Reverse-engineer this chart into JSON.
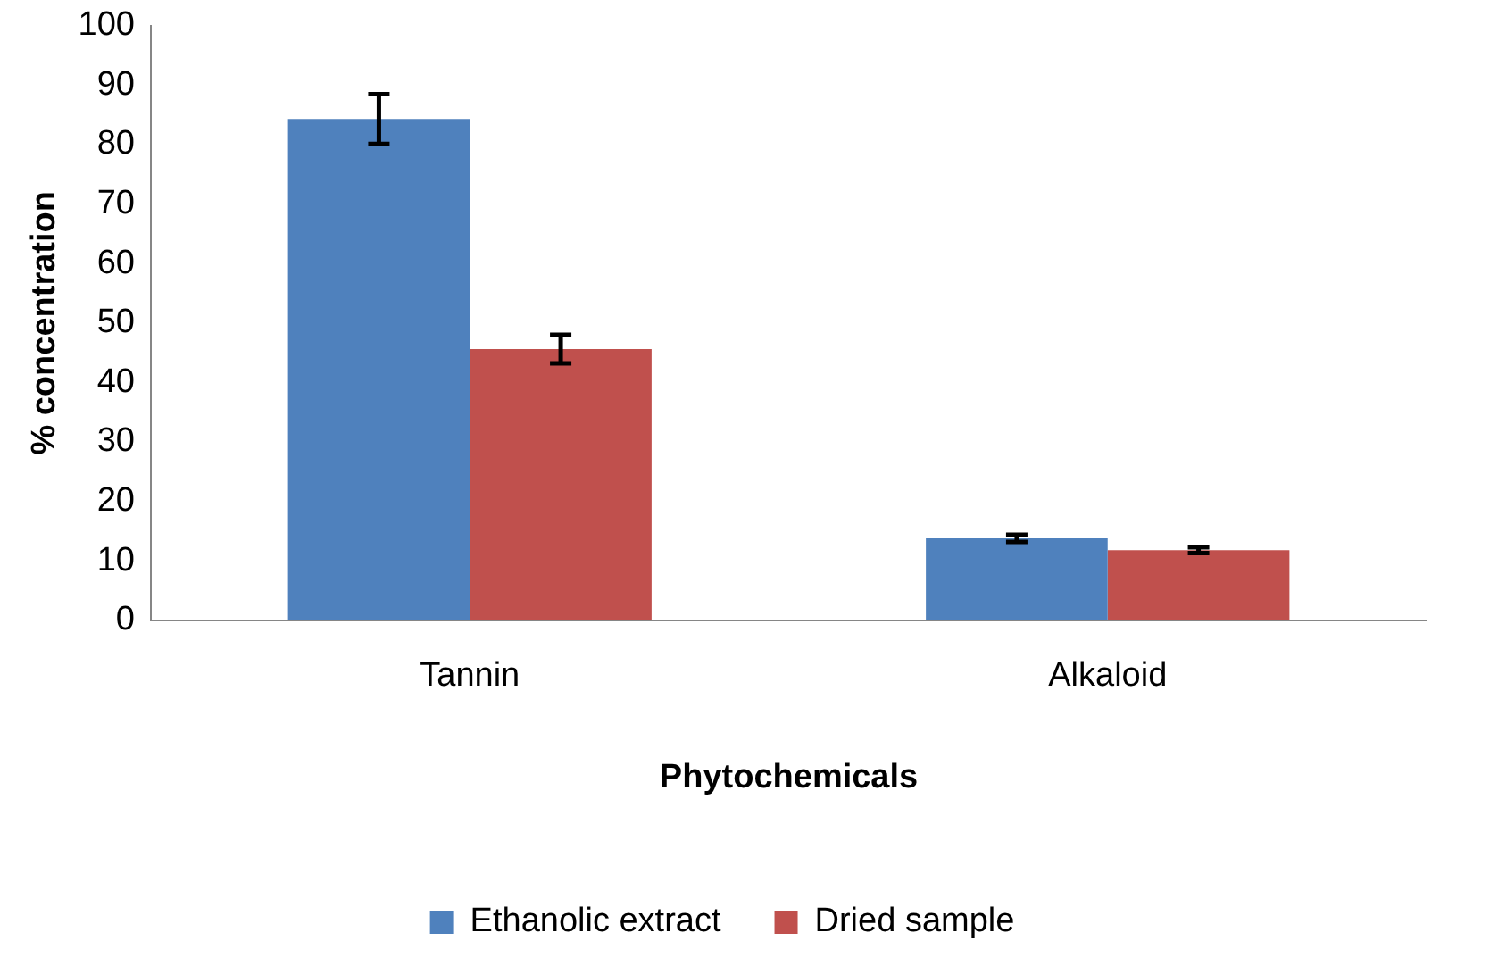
{
  "chart_data": {
    "type": "bar",
    "xlabel": "Phytochemicals",
    "ylabel": "% concentration",
    "categories": [
      "Tannin",
      "Alkaloid"
    ],
    "series": [
      {
        "name": "Ethanolic extract",
        "color": "#4f81bd",
        "values": [
          84.3,
          13.8
        ],
        "errors": [
          4.2,
          0.6
        ]
      },
      {
        "name": "Dried sample",
        "color": "#c0504d",
        "values": [
          45.6,
          11.8
        ],
        "errors": [
          2.4,
          0.5
        ]
      }
    ],
    "ylim": [
      0,
      100
    ],
    "yticks": [
      0,
      10,
      20,
      30,
      40,
      50,
      60,
      70,
      80,
      90,
      100
    ],
    "grid": false,
    "legend": "bottom"
  }
}
